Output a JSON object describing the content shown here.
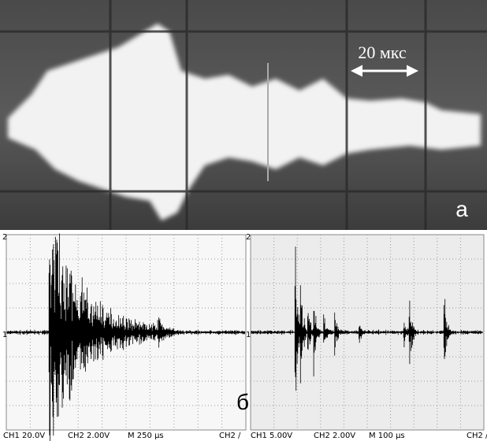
{
  "panel_a": {
    "scale_label": "20 мкс",
    "label": "а"
  },
  "panel_b": {
    "label": "б",
    "left": {
      "channel_markers": [
        "2",
        "1"
      ],
      "readout": [
        "CH1  20.0V",
        "CH2  2.00V",
        "M 250 μs",
        "CH2 ∕"
      ]
    },
    "right": {
      "channel_markers": [
        "2",
        "1"
      ],
      "readout": [
        "CH1  5.00V",
        "CH2  2.00V",
        "M 100 μs",
        "CH2 ∕"
      ]
    }
  }
}
